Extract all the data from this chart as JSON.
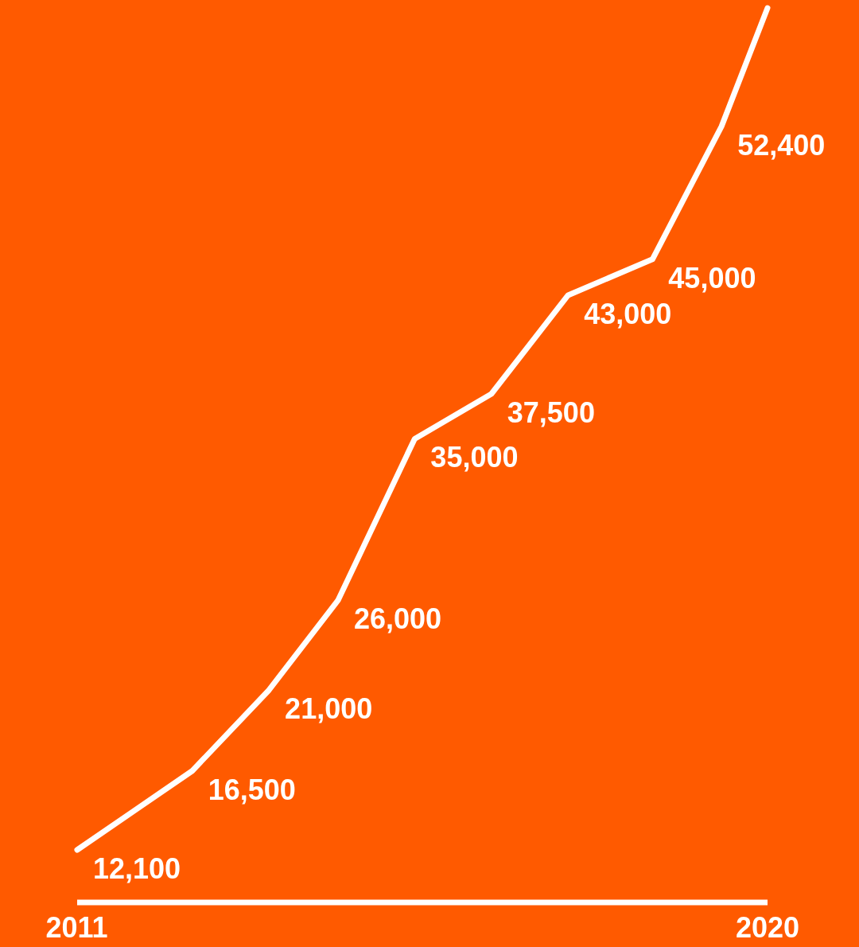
{
  "chart_data": {
    "type": "line",
    "x": [
      2011,
      2012.5,
      2013.5,
      2014.4,
      2015.4,
      2016.4,
      2017.4,
      2018.5,
      2019.4,
      2020
    ],
    "xlim": [
      2011,
      2020
    ],
    "xticks": [
      2011,
      2020
    ],
    "series": [
      {
        "color": "#ffffff",
        "values": [
          12100,
          16500,
          21000,
          26000,
          35000,
          37500,
          43000,
          45000,
          52400,
          59000
        ],
        "value_labels": [
          "12,100",
          "16,500",
          "21,000",
          "26,000",
          "35,000",
          "37,500",
          "43,000",
          "45,000",
          "52,400",
          null
        ]
      }
    ],
    "marker": "none",
    "line_style": "solid",
    "legend": false
  }
}
